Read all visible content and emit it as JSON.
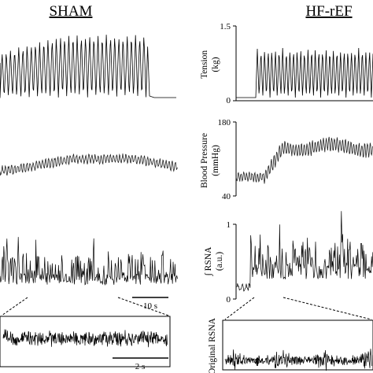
{
  "chart_data": {
    "type": "line",
    "groups": [
      "SHAM",
      "HF-rEF"
    ],
    "panels": [
      {
        "id": "tension",
        "ylabel_line1": "Tension",
        "ylabel_line2": "(kg)",
        "ylim": [
          0,
          1.5
        ],
        "ticks": [
          "0",
          "1.5"
        ]
      },
      {
        "id": "blood-pressure",
        "ylabel_line1": "Blood Pressure",
        "ylabel_line2": "(mmHg)",
        "ylim": [
          40,
          180
        ],
        "ticks": [
          "40",
          "180"
        ]
      },
      {
        "id": "integrated-rsna",
        "ylabel_line1": "∫ RSNA",
        "ylabel_line2": "(a.u.)",
        "ylim": [
          0,
          1
        ],
        "ticks": [
          "0",
          "1"
        ]
      },
      {
        "id": "original-rsna",
        "ylabel_line1": "Original RSNA",
        "ylabel_line2": ""
      }
    ],
    "scale_bars": {
      "long": "10 s",
      "short": "2 s"
    },
    "annotations": {
      "arrow": "↑"
    }
  }
}
